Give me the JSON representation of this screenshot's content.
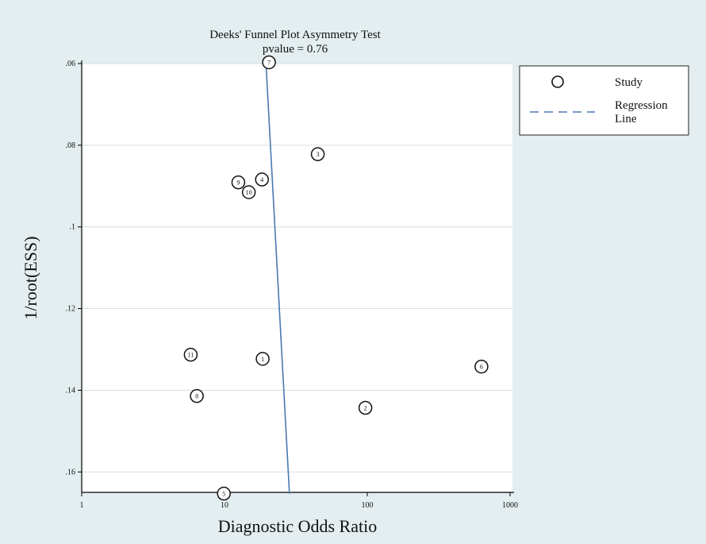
{
  "chart_data": {
    "type": "scatter",
    "title": "Deeks' Funnel Plot Asymmetry Test",
    "subtitle": "pvalue  =  0.76",
    "xlabel": "Diagnostic Odds Ratio",
    "ylabel": "1/root(ESS)",
    "x_scale": "log",
    "xlim": [
      1,
      1000
    ],
    "ylim": [
      0.165,
      0.06
    ],
    "y_reversed": true,
    "xticks": [
      1,
      10,
      100,
      1000
    ],
    "xtick_labels": [
      "1",
      "10",
      "100",
      "1000"
    ],
    "yticks": [
      0.06,
      0.08,
      0.1,
      0.12,
      0.14,
      0.16
    ],
    "ytick_labels": [
      ".06",
      ".08",
      ".1",
      ".12",
      ".14",
      ".16"
    ],
    "grid": true,
    "legend_position": "right",
    "series": [
      {
        "name": "Study",
        "marker": "circle",
        "points": [
          {
            "label": "1",
            "x": 18.5,
            "y": 0.1323
          },
          {
            "label": "2",
            "x": 97,
            "y": 0.1443
          },
          {
            "label": "3",
            "x": 45,
            "y": 0.0822
          },
          {
            "label": "4",
            "x": 18.3,
            "y": 0.0884
          },
          {
            "label": "5",
            "x": 9.9,
            "y": 0.1653
          },
          {
            "label": "6",
            "x": 630,
            "y": 0.1342
          },
          {
            "label": "7",
            "x": 20.5,
            "y": 0.0597
          },
          {
            "label": "8",
            "x": 6.4,
            "y": 0.1414
          },
          {
            "label": "9",
            "x": 12.5,
            "y": 0.0891
          },
          {
            "label": "10",
            "x": 14.8,
            "y": 0.0915
          },
          {
            "label": "11",
            "x": 5.8,
            "y": 0.1313
          }
        ]
      },
      {
        "name": "Regression\nLine",
        "type": "line",
        "color": "#4a78b0",
        "points": [
          {
            "x": 19.5,
            "y": 0.0597
          },
          {
            "x": 28.5,
            "y": 0.1653
          }
        ]
      }
    ]
  }
}
